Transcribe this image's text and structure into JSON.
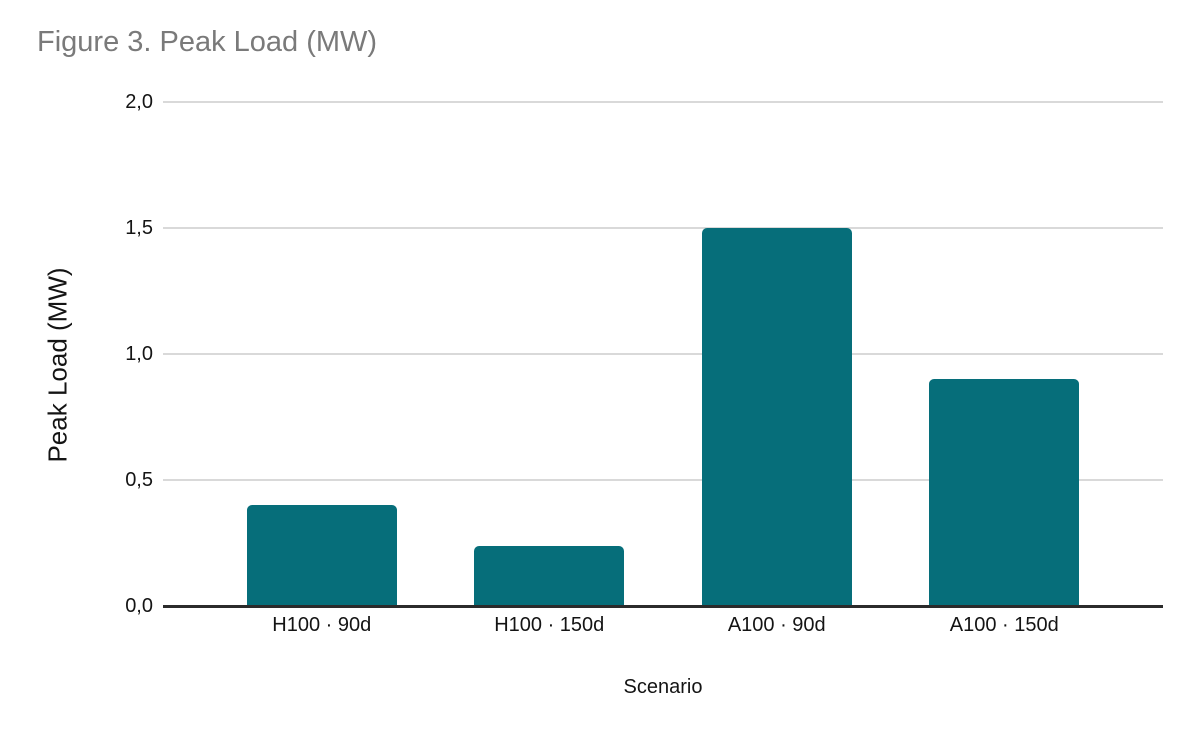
{
  "chart_data": {
    "type": "bar",
    "title": "Figure 3. Peak Load (MW)",
    "xlabel": "Scenario",
    "ylabel": "Peak Load (MW)",
    "categories": [
      "H100 · 90d",
      "H100 · 150d",
      "A100 · 90d",
      "A100 · 150d"
    ],
    "values": [
      0.4,
      0.24,
      1.5,
      0.9
    ],
    "ylim": [
      0,
      2
    ],
    "yticks": [
      0,
      0.5,
      1,
      1.5,
      2
    ],
    "ytick_labels": [
      "0,0",
      "0,5",
      "1,0",
      "1,5",
      "2,0"
    ],
    "grid": true,
    "legend_position": "none",
    "colors": {
      "bar": "#066e7a",
      "gridline": "#d9d9d9",
      "axis_line": "#2b2b2b",
      "title_text": "#7a7a7a",
      "label_text": "#141414",
      "background": "#ffffff"
    }
  }
}
